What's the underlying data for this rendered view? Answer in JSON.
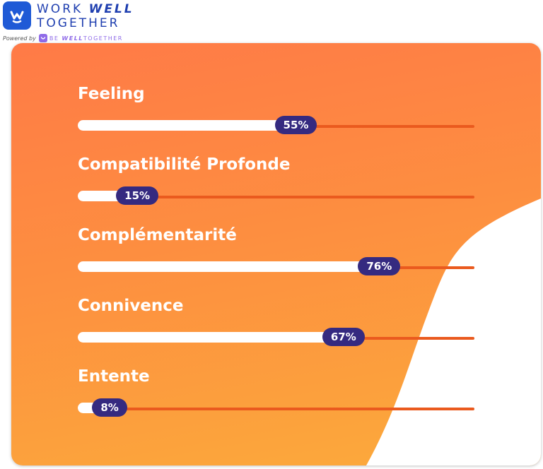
{
  "brand": {
    "line1_a": "WORK ",
    "line1_b": "WELL",
    "line2": "TOGETHER",
    "powered_label": "Powered by",
    "powered_a": "BE ",
    "powered_b": "WELL",
    "powered_c": "TOGETHER",
    "color": "#1f5ad6"
  },
  "metrics": [
    {
      "label": "Feeling",
      "value_text": "55%",
      "value": 0.55
    },
    {
      "label": "Compatibilité Profonde",
      "value_text": "15%",
      "value": 0.15
    },
    {
      "label": "Complémentarité",
      "value_text": "76%",
      "value": 0.76
    },
    {
      "label": "Connivence",
      "value_text": "67%",
      "value": 0.67
    },
    {
      "label": "Entente",
      "value_text": "8%",
      "value": 0.08
    }
  ],
  "colors": {
    "pill": "#352a80",
    "track": "#ea5a1e",
    "gradient_top": "#ff7a47",
    "gradient_bottom": "#fcab3b"
  }
}
